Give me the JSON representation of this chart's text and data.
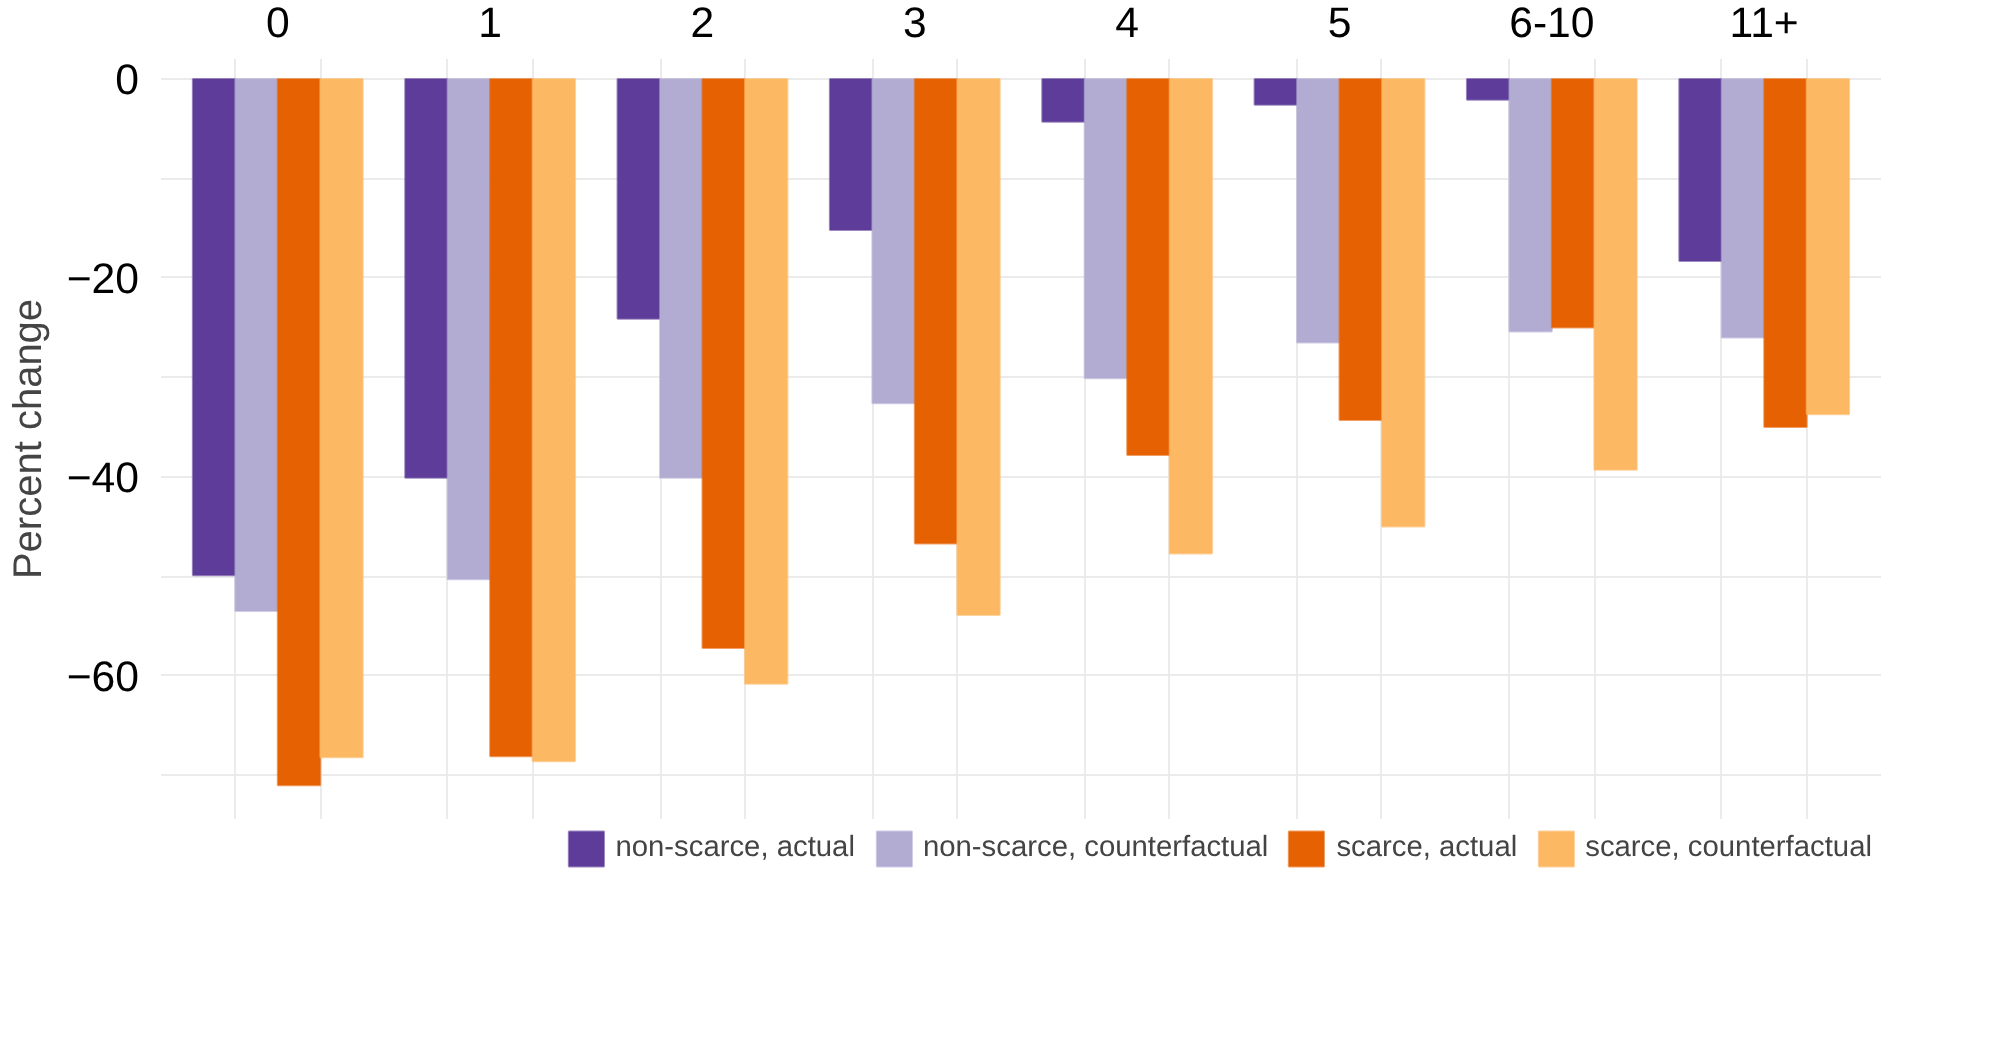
{
  "chart_data": {
    "type": "bar",
    "ylabel": "Percent change",
    "categories": [
      "0",
      "1",
      "2",
      "3",
      "4",
      "5",
      "6-10",
      "11+"
    ],
    "series": [
      {
        "name": "non-scarce, actual",
        "color": "#5e3c99",
        "values": [
          -49.9,
          -40.1,
          -24.1,
          -15.2,
          -4.3,
          -2.6,
          -2.1,
          -18.3
        ]
      },
      {
        "name": "non-scarce, counterfactual",
        "color": "#b2abd2",
        "values": [
          -53.5,
          -50.3,
          -40.1,
          -32.6,
          -30.1,
          -26.5,
          -25.4,
          -26.0
        ]
      },
      {
        "name": "scarce, actual",
        "color": "#e66101",
        "values": [
          -71.0,
          -68.1,
          -57.2,
          -46.7,
          -37.8,
          -34.3,
          -25.0,
          -35.0
        ]
      },
      {
        "name": "scarce, counterfactual",
        "color": "#fdb863",
        "values": [
          -68.2,
          -68.6,
          -60.8,
          -53.9,
          -47.7,
          -45.0,
          -39.3,
          -33.7
        ]
      }
    ],
    "ylim": [
      -74.4,
      2
    ],
    "yticks": [
      0,
      {
        "value": -10,
        "label": null
      },
      -20,
      {
        "value": -30,
        "label": null
      },
      -40,
      {
        "value": -50,
        "label": null
      },
      -60,
      {
        "value": -70,
        "label": null
      }
    ],
    "grid": true,
    "legend": "bottom"
  }
}
